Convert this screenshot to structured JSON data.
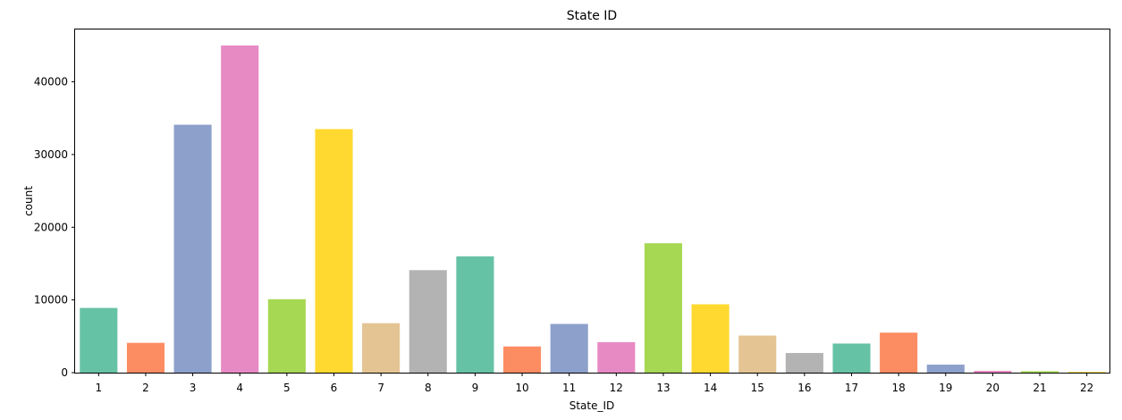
{
  "chart_data": {
    "type": "bar",
    "title": "State ID",
    "xlabel": "State_ID",
    "ylabel": "count",
    "categories": [
      "1",
      "2",
      "3",
      "4",
      "5",
      "6",
      "7",
      "8",
      "9",
      "10",
      "11",
      "12",
      "13",
      "14",
      "15",
      "16",
      "17",
      "18",
      "19",
      "20",
      "21",
      "22"
    ],
    "values": [
      8900,
      4100,
      34100,
      45000,
      10100,
      33500,
      6800,
      14100,
      16000,
      3600,
      6700,
      4200,
      17800,
      9400,
      5100,
      2700,
      4000,
      5500,
      1100,
      250,
      200,
      100
    ],
    "ylim": [
      0,
      47200
    ],
    "yticks": [
      0,
      10000,
      20000,
      30000,
      40000
    ],
    "grid": false,
    "legend": "none",
    "palette": [
      "#66c2a5",
      "#fc8d62",
      "#8da0cb",
      "#e78ac3",
      "#a6d854",
      "#ffd92f",
      "#e5c494",
      "#b3b3b3"
    ]
  }
}
